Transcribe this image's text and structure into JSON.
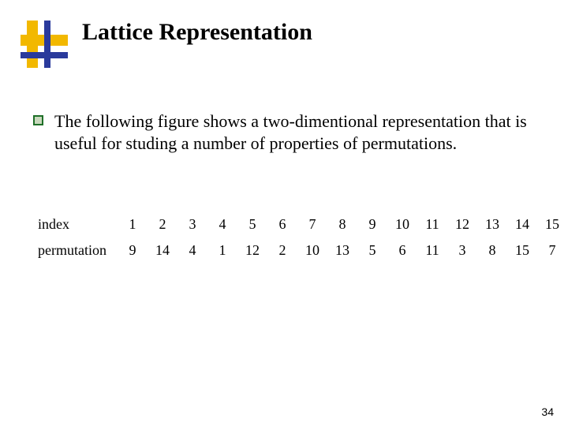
{
  "title": "Lattice Representation",
  "bullet": "The following figure shows a two-dimentional representation that is useful for studing a number of properties of permutations.",
  "table": {
    "index_label": "index",
    "perm_label": "permutation",
    "index": [
      "1",
      "2",
      "3",
      "4",
      "5",
      "6",
      "7",
      "8",
      "9",
      "10",
      "11",
      "12",
      "13",
      "14",
      "15"
    ],
    "permutation": [
      "9",
      "14",
      "4",
      "1",
      "12",
      "2",
      "10",
      "13",
      "5",
      "6",
      "11",
      "3",
      "8",
      "15",
      "7"
    ]
  },
  "page_number": "34",
  "colors": {
    "yellow": "#f2b800",
    "blue": "#2a3a9c",
    "bullet_border": "#1f6f28",
    "bullet_fill": "#c8d8bc"
  }
}
